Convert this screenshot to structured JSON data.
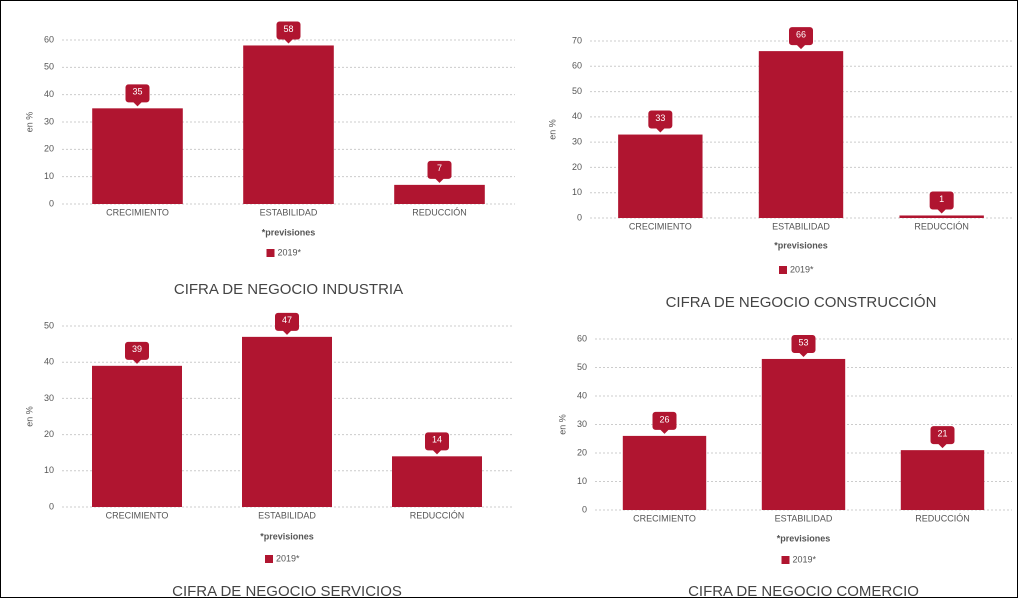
{
  "chart_data": [
    {
      "type": "bar",
      "title": "CIFRA DE NEGOCIO INDUSTRIA",
      "y_label": "en %",
      "x_label": "*previsiones",
      "categories": [
        "CRECIMIENTO",
        "ESTABILIDAD",
        "REDUCCIÓN"
      ],
      "series": [
        {
          "name": "2019*",
          "color": "#b01530",
          "values": [
            35,
            58,
            7
          ]
        }
      ],
      "ylim": [
        0,
        60
      ],
      "yticks": [
        0,
        10,
        20,
        30,
        40,
        50,
        60
      ],
      "grid": true
    },
    {
      "type": "bar",
      "title": "CIFRA DE NEGOCIO CONSTRUCCIÓN",
      "y_label": "en %",
      "x_label": "*previsiones",
      "categories": [
        "CRECIMIENTO",
        "ESTABILIDAD",
        "REDUCCIÓN"
      ],
      "series": [
        {
          "name": "2019*",
          "color": "#b01530",
          "values": [
            33,
            66,
            1
          ]
        }
      ],
      "ylim": [
        0,
        70
      ],
      "yticks": [
        0,
        10,
        20,
        30,
        40,
        50,
        60,
        70
      ],
      "grid": true
    },
    {
      "type": "bar",
      "title": "CIFRA DE NEGOCIO SERVICIOS",
      "y_label": "en %",
      "x_label": "*previsiones",
      "categories": [
        "CRECIMIENTO",
        "ESTABILIDAD",
        "REDUCCIÓN"
      ],
      "series": [
        {
          "name": "2019*",
          "color": "#b01530",
          "values": [
            39,
            47,
            14
          ]
        }
      ],
      "ylim": [
        0,
        50
      ],
      "yticks": [
        0,
        10,
        20,
        30,
        40,
        50
      ],
      "grid": true
    },
    {
      "type": "bar",
      "title": "CIFRA DE NEGOCIO COMERCIO",
      "y_label": "en %",
      "x_label": "*previsiones",
      "categories": [
        "CRECIMIENTO",
        "ESTABILIDAD",
        "REDUCCIÓN"
      ],
      "series": [
        {
          "name": "2019*",
          "color": "#b01530",
          "values": [
            26,
            53,
            21
          ]
        }
      ],
      "ylim": [
        0,
        60
      ],
      "yticks": [
        0,
        10,
        20,
        30,
        40,
        50,
        60
      ],
      "grid": true
    }
  ]
}
